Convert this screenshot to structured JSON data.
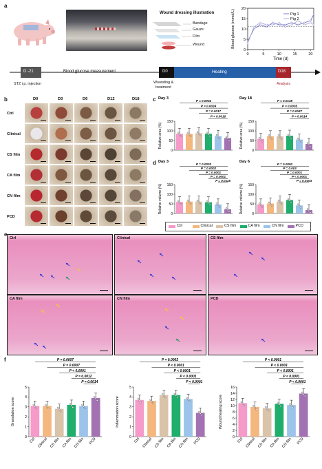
{
  "panel_labels": {
    "a": "a",
    "b": "b",
    "c": "c",
    "d": "d",
    "e": "e",
    "f": "f"
  },
  "panel_a": {
    "illustration_title": "Wound dressing illustration",
    "layers": [
      "Bandage",
      "Gauze",
      "Film",
      "Wound"
    ],
    "timeline": {
      "start": "D -21",
      "measurement": "Blood glucose  measurement",
      "d0": "D0",
      "healing": "Healing",
      "d18": "D18",
      "stz": "STZ i.p. injection",
      "wounding": "Wounding  &",
      "treatment": "treatment",
      "analysis": "Analysis"
    }
  },
  "panel_b": {
    "columns": [
      "D0",
      "D3",
      "D6",
      "D12",
      "D18"
    ],
    "rows": [
      "Ctrl",
      "Clinical",
      "CS film",
      "CA film",
      "CN film",
      "PCD"
    ]
  },
  "legend": {
    "items": [
      {
        "label": "Ctrl",
        "color": "#f59ac9"
      },
      {
        "label": "Clinical",
        "color": "#f4b77e"
      },
      {
        "label": "CS film",
        "color": "#d9c3a9"
      },
      {
        "label": "CA film",
        "color": "#1fae6c"
      },
      {
        "label": "CN film",
        "color": "#9cc3ea"
      },
      {
        "label": "PCD",
        "color": "#a372b3"
      }
    ]
  },
  "panel_e": {
    "labels": [
      "Ctrl",
      "Clinical",
      "CS film",
      "CA film",
      "CN film",
      "PCD"
    ]
  },
  "chart_data": [
    {
      "type": "line",
      "panel": "a",
      "xlabel": "Time (d)",
      "ylabel": "Blood glucose (mmol/L)",
      "xticks": [
        0,
        5,
        10,
        15,
        20
      ],
      "yticks": [
        0,
        5,
        10,
        15,
        20
      ],
      "xlim": [
        0,
        21
      ],
      "ylim": [
        0,
        20
      ],
      "threshold": 11.1,
      "series": [
        {
          "name": "Pig 1",
          "color": "#6f6fc4",
          "x": [
            0,
            2,
            4,
            6,
            8,
            10,
            12,
            14,
            16,
            18,
            20,
            21
          ],
          "y": [
            4,
            10,
            12,
            11,
            13,
            12,
            12,
            13,
            12,
            13,
            14,
            17
          ]
        },
        {
          "name": "Pig 2",
          "color": "#a7a7d8",
          "x": [
            0,
            2,
            4,
            6,
            8,
            10,
            12,
            14,
            16,
            18,
            20,
            21
          ],
          "y": [
            3,
            11,
            13,
            12,
            12,
            13,
            11,
            12,
            14,
            12,
            13,
            12
          ]
        }
      ]
    },
    {
      "type": "bar",
      "panel": "c",
      "subtitle": "Day 3",
      "ylabel": "Relative area (%)",
      "ylim": [
        0,
        150
      ],
      "yticks": [
        0,
        50,
        100,
        150
      ],
      "categories": [
        "Ctrl",
        "Clinical",
        "CS film",
        "CA film",
        "CN film",
        "PCD"
      ],
      "values": [
        85,
        85,
        88,
        85,
        73,
        63
      ],
      "annotations": [
        "P = 0.0034",
        "P = 0.0024",
        "P = 0.0017",
        "P = 0.0016"
      ]
    },
    {
      "type": "bar",
      "panel": "c",
      "subtitle": "Day 18",
      "ylabel": "Relative area (%)",
      "ylim": [
        0,
        150
      ],
      "yticks": [
        0,
        50,
        100,
        150
      ],
      "categories": [
        "Ctrl",
        "Clinical",
        "CS film",
        "CA film",
        "CN film",
        "PCD"
      ],
      "values": [
        58,
        72,
        72,
        75,
        55,
        32
      ],
      "annotations": [
        "P = 0.0149",
        "P = 0.0035",
        "P = 0.0047",
        "P = 0.0014"
      ]
    },
    {
      "type": "bar",
      "panel": "d",
      "subtitle": "Day 3",
      "ylabel": "Relative volume (%)",
      "ylim": [
        0,
        150
      ],
      "yticks": [
        0,
        50,
        100,
        150
      ],
      "categories": [
        "Ctrl",
        "Clinical",
        "CS film",
        "CA film",
        "CN film",
        "PCD"
      ],
      "values": [
        60,
        62,
        62,
        58,
        47,
        22
      ],
      "annotations": [
        "P = 0.0003",
        "P = 0.0002",
        "P = 0.0001",
        "P = 0.0001",
        "P = 0.0115"
      ]
    },
    {
      "type": "bar",
      "panel": "d",
      "subtitle": "Day 6",
      "ylabel": "Relative volume (%)",
      "ylim": [
        0,
        150
      ],
      "yticks": [
        0,
        50,
        100,
        150
      ],
      "categories": [
        "Ctrl",
        "Clinical",
        "CS film",
        "CA film",
        "CN film",
        "PCD"
      ],
      "values": [
        47,
        52,
        62,
        70,
        42,
        18
      ],
      "annotations": [
        "P = 0.0092",
        "P = 0.003",
        "P = 0.0001",
        "P < 0.0001",
        "P = 0.0104"
      ]
    },
    {
      "type": "bar",
      "panel": "f",
      "ylabel": "Granulation score",
      "ylim": [
        0,
        5
      ],
      "yticks": [
        0,
        1,
        2,
        3,
        4,
        5
      ],
      "categories": [
        "Ctrl",
        "Clinical",
        "CS film",
        "CA film",
        "CN film",
        "PCD"
      ],
      "values": [
        3.1,
        3.1,
        2.8,
        3.2,
        3.1,
        3.9
      ],
      "annotations": [
        "P = 0.0007",
        "P = 0.0007",
        "P < 0.0001",
        "P = 0.0012",
        "P = 0.0014"
      ]
    },
    {
      "type": "bar",
      "panel": "f",
      "ylabel": "Inflammation score",
      "ylim": [
        0,
        5
      ],
      "yticks": [
        0,
        1,
        2,
        3,
        4,
        5
      ],
      "categories": [
        "Ctrl",
        "Clinical",
        "CS film",
        "CA film",
        "CN film",
        "PCD"
      ],
      "values": [
        3.7,
        3.6,
        4.2,
        4.2,
        3.8,
        2.4
      ],
      "annotations": [
        "P = 0.0003",
        "P < 0.0001",
        "P < 0.0001",
        "P < 0.0001",
        "P < 0.0001"
      ]
    },
    {
      "type": "bar",
      "panel": "f",
      "ylabel": "Wound healing score",
      "ylim": [
        0,
        16
      ],
      "yticks": [
        0,
        2,
        4,
        6,
        8,
        10,
        12,
        14,
        16
      ],
      "categories": [
        "Ctrl",
        "Clinical",
        "CS film",
        "CA film",
        "CN film",
        "PCD"
      ],
      "values": [
        10.8,
        9.6,
        9.2,
        10.6,
        10.2,
        13.9
      ],
      "annotations": [
        "P < 0.0001",
        "P < 0.0001",
        "P < 0.0001",
        "P < 0.0001",
        "P < 0.0001"
      ]
    }
  ]
}
